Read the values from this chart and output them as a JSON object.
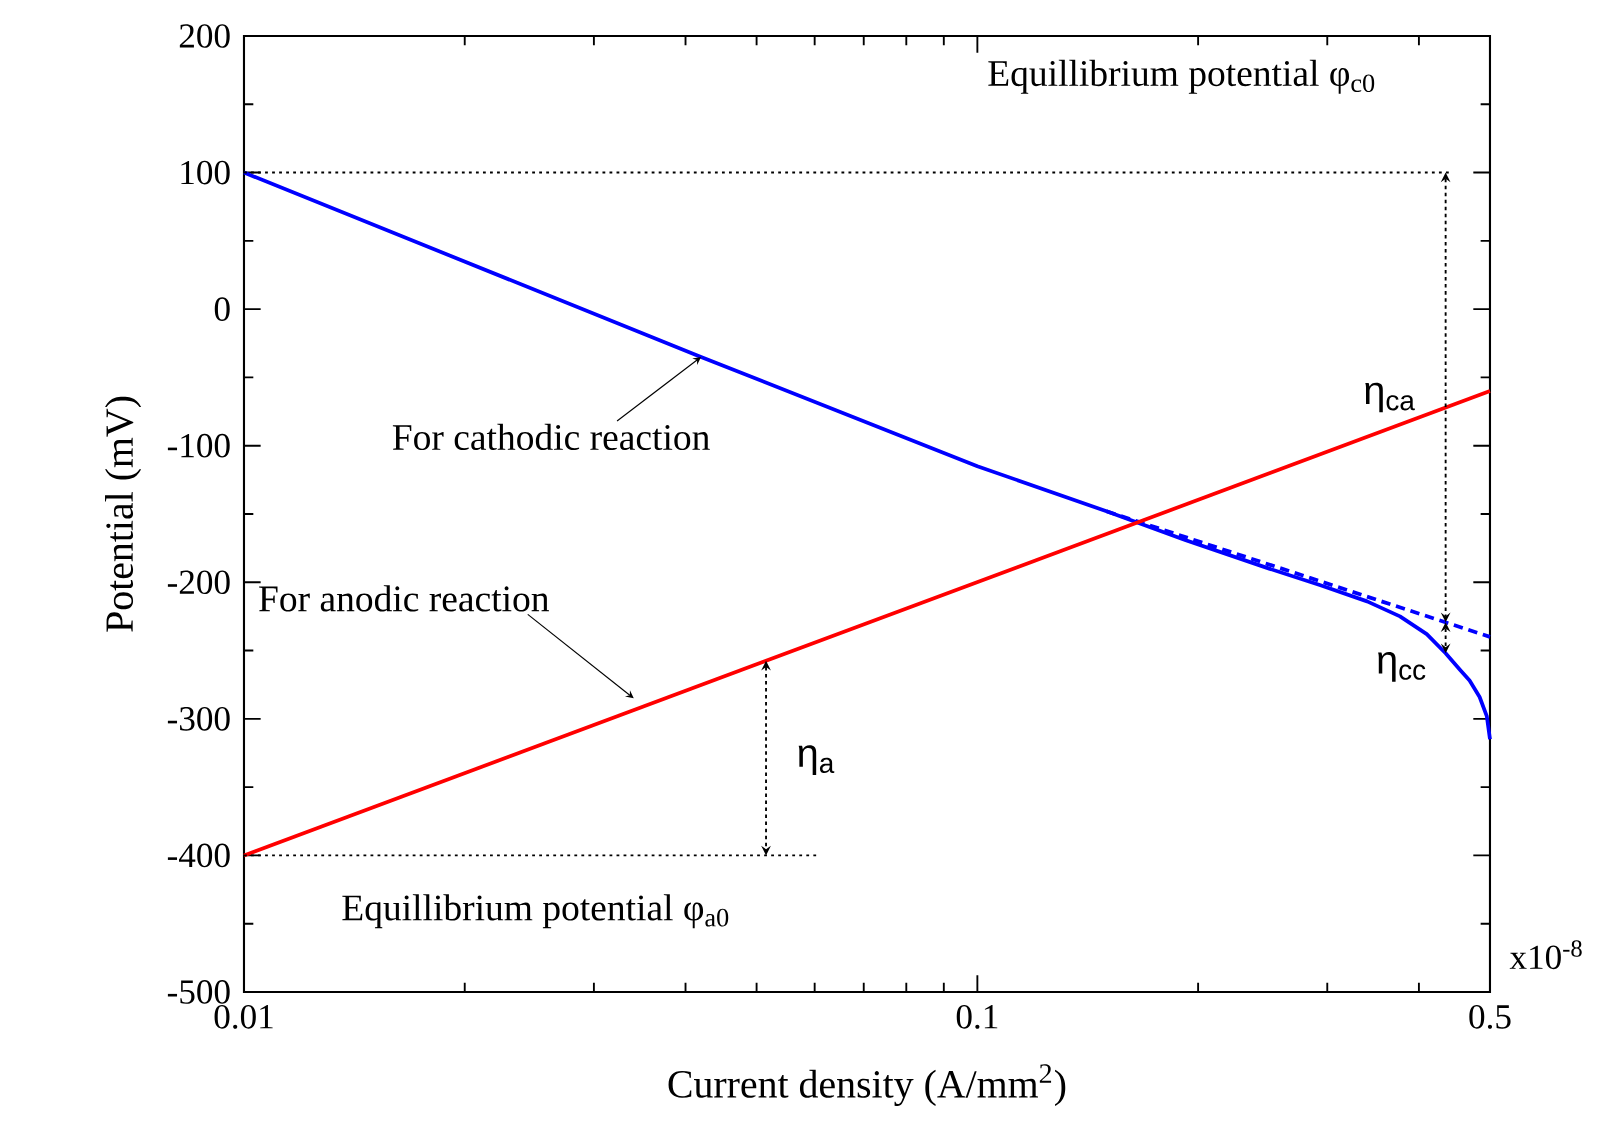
{
  "chart_data": {
    "type": "line",
    "xlabel": "Current density (A/mm$^{2}$)",
    "ylabel": "Potential (mV)",
    "log": "x",
    "xlim": [
      0.01,
      0.5
    ],
    "xticks": [
      0.01,
      0.1,
      0.5
    ],
    "ylim": [
      -500,
      200
    ],
    "yticks": [
      -500,
      -400,
      -300,
      -200,
      -100,
      0,
      100,
      200
    ],
    "series": [
      {
        "color": "#0000ff",
        "x": [
          0.01,
          0.042,
          0.1,
          0.15,
          0.192,
          0.25,
          0.293,
          0.34,
          0.377,
          0.41,
          0.435,
          0.455,
          0.469,
          0.484,
          0.495,
          0.5
        ],
        "values": [
          100,
          -35,
          -115,
          -148,
          -169,
          -190,
          -202,
          -214,
          -225,
          -238,
          -252,
          -264,
          -272,
          -284,
          -298,
          -315
        ]
      },
      {
        "color": "#0000ff",
        "line_style": "dashed",
        "x": [
          0.15,
          0.5
        ],
        "values": [
          -148,
          -240
        ]
      },
      {
        "color": "#ff0000",
        "x": [
          0.01,
          0.5
        ],
        "values": [
          -400,
          -60
        ]
      },
      {
        "color": "#000000",
        "line_style": "dotted",
        "x": [
          0.01,
          0.44
        ],
        "values": [
          100,
          100
        ]
      },
      {
        "color": "#000000",
        "line_style": "dotted",
        "x": [
          0.01,
          0.061
        ],
        "values": [
          -400,
          -400
        ]
      }
    ],
    "annotations": [
      {
        "text": "Equillibrium potential φ$_{c0}$",
        "x": 0.19,
        "y": 100
      },
      {
        "text": "Equillibrium potential φ$_{a0}$",
        "x": 0.025,
        "y": -400
      },
      {
        "text": "For cathodic reaction",
        "x": 0.042,
        "y": -35
      },
      {
        "text": "For anodic reaction",
        "x": 0.034,
        "y": -285
      },
      "η$_{ca}$",
      {
        "text": "η$_{cc}$",
        "x": 0.435,
        "y": -262
      },
      {
        "text": "η$_{a}$",
        "x": 0.0515,
        "y": -257
      },
      "x10$^{-8}$"
    ]
  }
}
